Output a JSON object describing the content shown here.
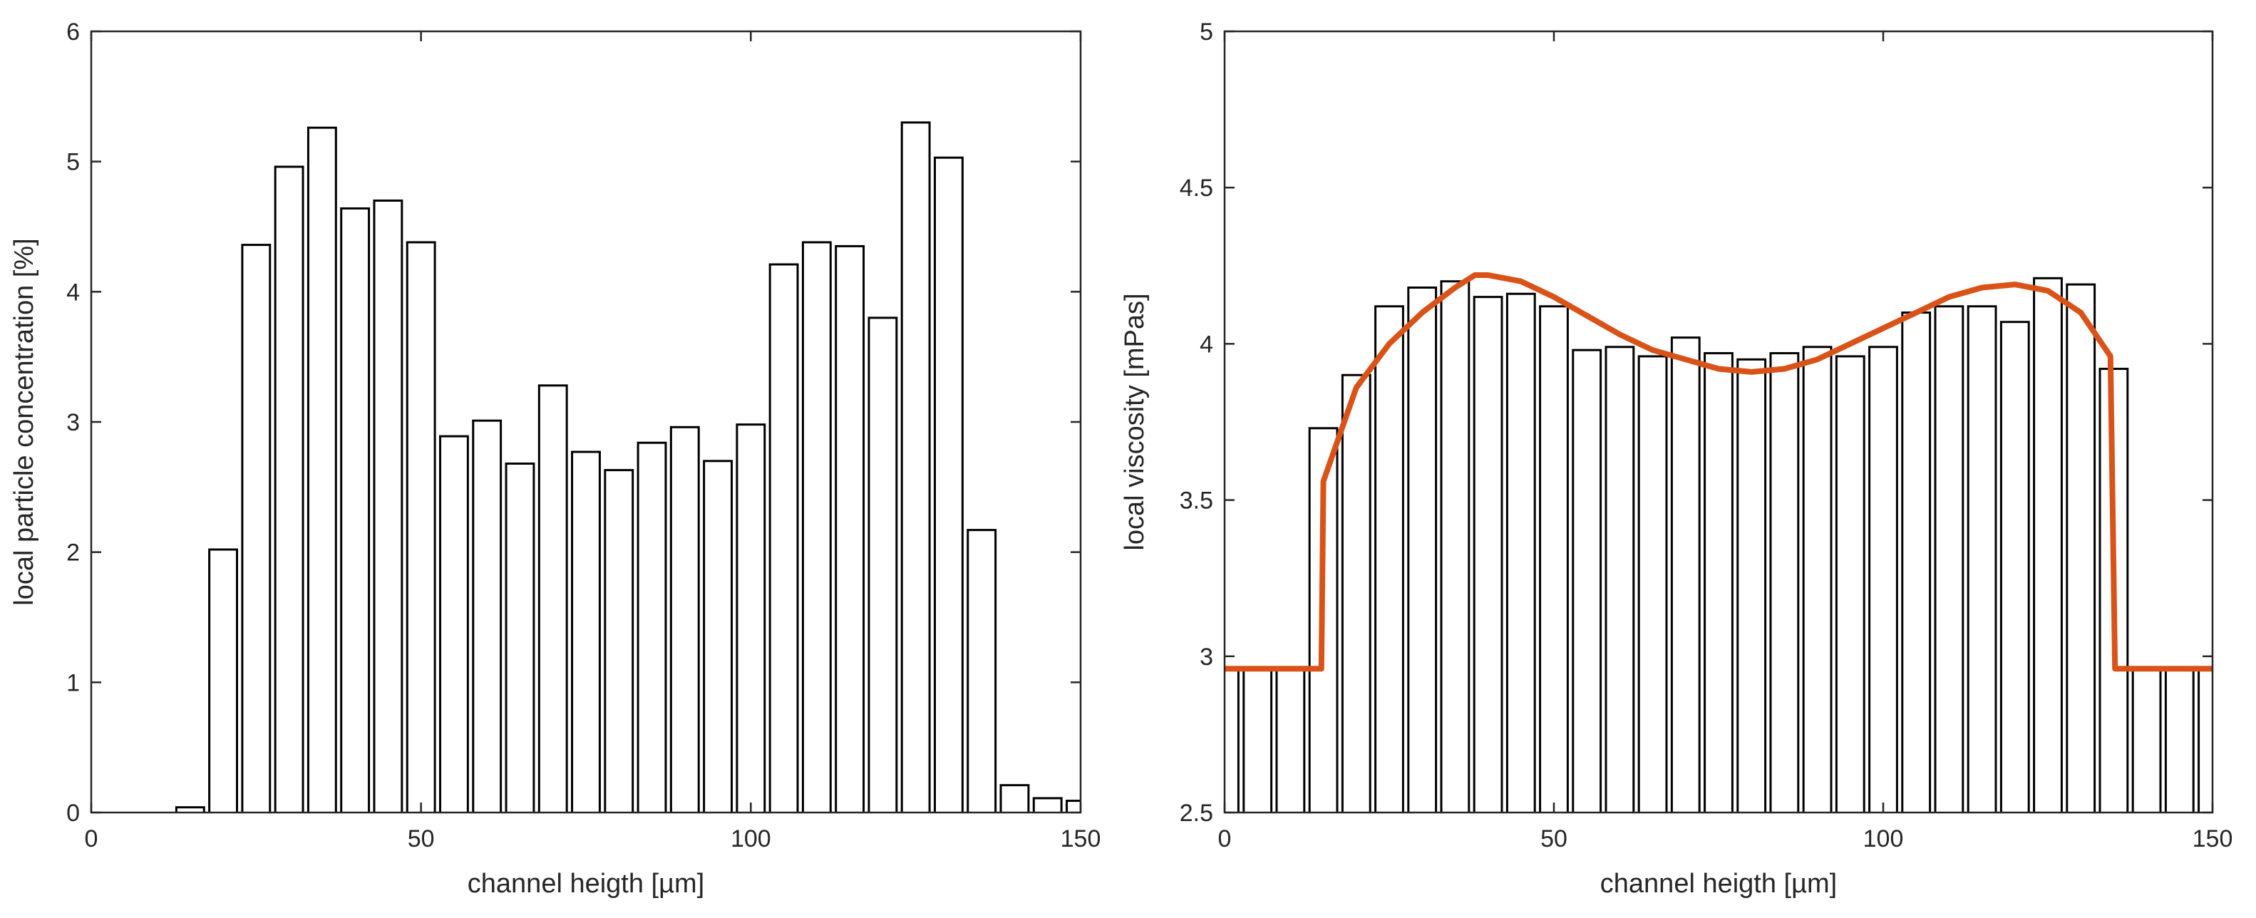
{
  "chart_data": [
    {
      "type": "bar",
      "title": "",
      "xlabel": "channel heigth [µm]",
      "ylabel": "local particle concentration [%]",
      "xlim": [
        0,
        150
      ],
      "ylim": [
        0,
        6
      ],
      "xticks": [
        0,
        50,
        100,
        150
      ],
      "yticks": [
        0,
        1,
        2,
        3,
        4,
        5,
        6
      ],
      "bar_width": 4.2,
      "grid": false,
      "legend": "none",
      "series": [
        {
          "name": "concentration",
          "x": [
            15,
            20,
            25,
            30,
            35,
            40,
            45,
            50,
            55,
            60,
            65,
            70,
            75,
            80,
            85,
            90,
            95,
            100,
            105,
            110,
            115,
            120,
            125,
            130,
            135,
            140,
            145,
            150
          ],
          "values": [
            0.04,
            2.02,
            4.36,
            4.96,
            5.26,
            4.64,
            4.7,
            4.38,
            2.89,
            3.01,
            2.68,
            3.28,
            2.77,
            2.63,
            2.84,
            2.96,
            2.7,
            2.98,
            4.21,
            4.38,
            4.35,
            3.8,
            5.3,
            5.03,
            2.17,
            0.21,
            0.11,
            0.09
          ]
        }
      ]
    },
    {
      "type": "bar",
      "title": "",
      "xlabel": "channel heigth [µm]",
      "ylabel": "local viscosity [mPas]",
      "xlim": [
        0,
        150
      ],
      "ylim": [
        2.5,
        5
      ],
      "xticks": [
        0,
        50,
        100,
        150
      ],
      "yticks": [
        2.5,
        3,
        3.5,
        4,
        4.5,
        5
      ],
      "bar_width": 4.2,
      "grid": false,
      "legend": "none",
      "series": [
        {
          "name": "viscosity",
          "x": [
            0,
            5,
            10,
            15,
            20,
            25,
            30,
            35,
            40,
            45,
            50,
            55,
            60,
            65,
            70,
            75,
            80,
            85,
            90,
            95,
            100,
            105,
            110,
            115,
            120,
            125,
            130,
            135,
            140,
            145,
            150
          ],
          "values": [
            2.96,
            2.96,
            2.96,
            3.73,
            3.9,
            4.12,
            4.18,
            4.2,
            4.15,
            4.16,
            4.12,
            3.98,
            3.99,
            3.96,
            4.02,
            3.97,
            3.95,
            3.97,
            3.99,
            3.96,
            3.99,
            4.1,
            4.12,
            4.12,
            4.07,
            4.21,
            4.19,
            3.92,
            2.96,
            2.96,
            2.96
          ]
        },
        {
          "name": "fit",
          "type": "line",
          "color": "#d95319",
          "x": [
            0,
            14.7,
            15,
            20,
            25,
            30,
            35,
            38,
            40,
            45,
            50,
            55,
            60,
            65,
            70,
            75,
            80,
            85,
            90,
            95,
            100,
            105,
            110,
            115,
            120,
            125,
            130,
            134.5,
            135.2,
            150
          ],
          "values": [
            2.96,
            2.96,
            3.56,
            3.86,
            4.0,
            4.1,
            4.18,
            4.22,
            4.22,
            4.2,
            4.15,
            4.09,
            4.03,
            3.98,
            3.95,
            3.92,
            3.91,
            3.92,
            3.95,
            4.0,
            4.05,
            4.1,
            4.15,
            4.18,
            4.19,
            4.17,
            4.1,
            3.96,
            2.96,
            2.96
          ]
        }
      ]
    }
  ]
}
